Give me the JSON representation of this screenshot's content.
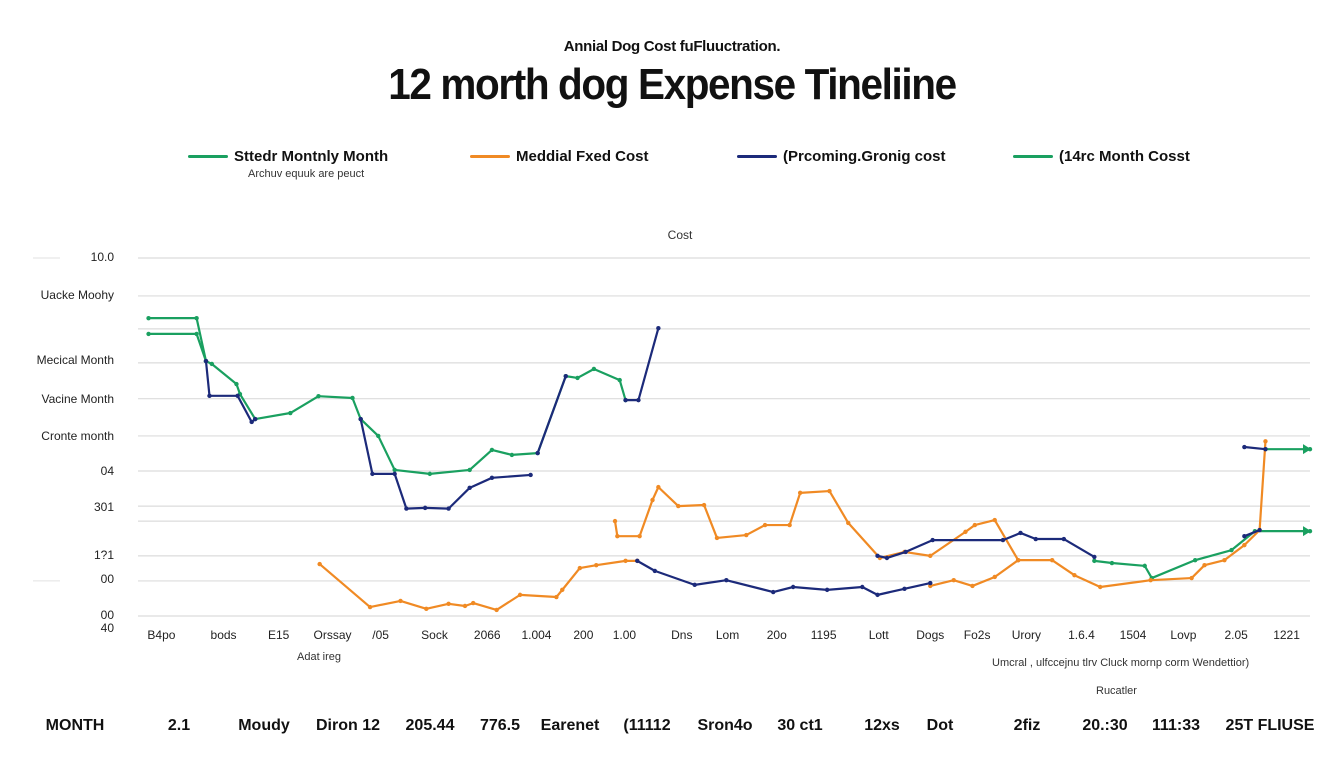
{
  "header": {
    "subtitle": "Annial Dog Cost fuFluuctration.",
    "title": "12 morth dog Expense Tineliine"
  },
  "legend": {
    "items": [
      {
        "label": "Sttedr Montnly Month",
        "color": "#1aa060"
      },
      {
        "label": "Meddial Fxed Cost",
        "color": "#f08a24"
      },
      {
        "label": "(Prcoming.Gronig cost",
        "color": "#1c2a7a"
      },
      {
        "label": "(14rc Month Cosst",
        "color": "#1aa060"
      }
    ],
    "note": "Archuv equuk are peuct"
  },
  "chart_data": {
    "type": "line",
    "title": "12 morth dog Expense Tineliine",
    "subtitle": "Annial Dog Cost fuFluuctration.",
    "ylabel": "Cost",
    "xlabel": "Adat ireg",
    "ylim": [
      0,
      10
    ],
    "xlim": [
      0,
      100
    ],
    "grid": true,
    "legend_position": "top",
    "y_ticks": [
      {
        "label": "10.0",
        "value": 10.0
      },
      {
        "label": "Uacke Moohy",
        "value": 8.94
      },
      {
        "label": "Mecical Month",
        "value": 7.12
      },
      {
        "label": "Vacine Month",
        "value": 6.03
      },
      {
        "label": "Cronte month",
        "value": 5.0
      },
      {
        "label": "04",
        "value": 4.02
      },
      {
        "label": "301",
        "value": 3.02
      },
      {
        "label": "1?1",
        "value": 1.68
      },
      {
        "label": "00",
        "value": 1.0
      },
      {
        "label": "00",
        "value": 0.0
      },
      {
        "label": "40",
        "value": -0.35
      }
    ],
    "gridlines": [
      10.0,
      8.94,
      8.02,
      7.07,
      6.07,
      5.03,
      4.05,
      3.07,
      2.65,
      1.68,
      0.98,
      0.0
    ],
    "x_ticks": [
      {
        "label": "B4po",
        "value": 2.0
      },
      {
        "label": "bods",
        "value": 7.3
      },
      {
        "label": "E15",
        "value": 12.0
      },
      {
        "label": "Orssay",
        "value": 16.6
      },
      {
        "label": "/05",
        "value": 20.7
      },
      {
        "label": "Sock",
        "value": 25.3
      },
      {
        "label": "2066",
        "value": 29.8
      },
      {
        "label": "1.004",
        "value": 34.0
      },
      {
        "label": "200",
        "value": 38.0
      },
      {
        "label": "1.00",
        "value": 41.5
      },
      {
        "label": "Dns",
        "value": 46.4
      },
      {
        "label": "Lom",
        "value": 50.3
      },
      {
        "label": "20o",
        "value": 54.5
      },
      {
        "label": "1195",
        "value": 58.5
      },
      {
        "label": "Lott",
        "value": 63.2
      },
      {
        "label": "Dogs",
        "value": 67.6
      },
      {
        "label": "Fo2s",
        "value": 71.6
      },
      {
        "label": "Urory",
        "value": 75.8
      },
      {
        "label": "1.6.4",
        "value": 80.5
      },
      {
        "label": "1504",
        "value": 84.9
      },
      {
        "label": "Lovp",
        "value": 89.2
      },
      {
        "label": "2.05",
        "value": 93.7
      },
      {
        "label": "1221",
        "value": 98.0
      }
    ],
    "x_notes": {
      "left": "Adat ireg",
      "right": "Umcral , ulfccejnu tlrv Cluck mornp corm Wendettior)",
      "right_sub": "Rucatler"
    },
    "series": [
      {
        "name": "Sttedr Montnly Month",
        "color": "#1aa060",
        "segments": [
          [
            [
              0.9,
              8.32
            ],
            [
              5.0,
              8.32
            ],
            [
              5.8,
              7.12
            ],
            [
              6.3,
              7.04
            ],
            [
              8.4,
              6.48
            ],
            [
              8.7,
              6.2
            ],
            [
              10.0,
              5.5
            ],
            [
              13.0,
              5.67
            ],
            [
              15.4,
              6.14
            ],
            [
              18.3,
              6.09
            ],
            [
              19.0,
              5.5
            ],
            [
              20.5,
              5.03
            ],
            [
              21.9,
              4.08
            ],
            [
              24.9,
              3.97
            ],
            [
              28.3,
              4.08
            ],
            [
              30.2,
              4.64
            ],
            [
              31.9,
              4.5
            ],
            [
              34.1,
              4.55
            ],
            [
              36.5,
              6.7
            ],
            [
              37.5,
              6.65
            ],
            [
              38.9,
              6.9
            ],
            [
              41.1,
              6.59
            ],
            [
              41.6,
              6.03
            ]
          ],
          [
            [
              0.9,
              7.88
            ],
            [
              5.0,
              7.88
            ],
            [
              5.8,
              7.12
            ]
          ],
          [
            [
              81.6,
              1.54
            ],
            [
              83.1,
              1.48
            ],
            [
              85.9,
              1.4
            ],
            [
              86.5,
              1.06
            ],
            [
              90.2,
              1.56
            ],
            [
              93.3,
              1.84
            ],
            [
              95.3,
              2.37
            ],
            [
              100.0,
              2.37
            ]
          ],
          [
            [
              96.2,
              4.66
            ],
            [
              100.0,
              4.66
            ]
          ]
        ]
      },
      {
        "name": "Meddial Fxed Cost",
        "color": "#f08a24",
        "segments": [
          [
            [
              15.5,
              1.45
            ],
            [
              19.8,
              0.25
            ],
            [
              22.4,
              0.42
            ],
            [
              24.6,
              0.2
            ],
            [
              26.5,
              0.34
            ],
            [
              27.9,
              0.28
            ],
            [
              28.6,
              0.36
            ],
            [
              30.6,
              0.17
            ],
            [
              32.6,
              0.59
            ],
            [
              35.7,
              0.53
            ],
            [
              36.2,
              0.73
            ],
            [
              37.7,
              1.34
            ],
            [
              39.1,
              1.42
            ],
            [
              41.6,
              1.54
            ],
            [
              42.6,
              1.54
            ]
          ],
          [
            [
              40.7,
              2.65
            ],
            [
              40.9,
              2.23
            ],
            [
              42.8,
              2.23
            ],
            [
              43.9,
              3.24
            ],
            [
              44.4,
              3.6
            ],
            [
              46.1,
              3.07
            ],
            [
              48.3,
              3.1
            ],
            [
              49.4,
              2.18
            ],
            [
              51.9,
              2.26
            ],
            [
              53.5,
              2.54
            ],
            [
              55.6,
              2.54
            ],
            [
              56.5,
              3.44
            ],
            [
              59.0,
              3.49
            ],
            [
              60.6,
              2.6
            ],
            [
              63.3,
              1.62
            ],
            [
              65.4,
              1.79
            ],
            [
              67.6,
              1.68
            ],
            [
              70.6,
              2.35
            ],
            [
              71.4,
              2.54
            ],
            [
              73.1,
              2.68
            ],
            [
              75.1,
              1.56
            ],
            [
              78.0,
              1.56
            ],
            [
              79.9,
              1.14
            ],
            [
              82.1,
              0.81
            ],
            [
              86.4,
              1.0
            ],
            [
              89.9,
              1.06
            ],
            [
              91.0,
              1.42
            ],
            [
              92.7,
              1.56
            ],
            [
              94.4,
              1.98
            ],
            [
              95.7,
              2.4
            ],
            [
              96.2,
              4.88
            ]
          ],
          [
            [
              67.6,
              0.84
            ],
            [
              69.6,
              1.0
            ],
            [
              71.2,
              0.84
            ],
            [
              73.1,
              1.09
            ],
            [
              75.1,
              1.56
            ]
          ]
        ]
      },
      {
        "name": "(Prcoming.Gronig cost",
        "color": "#1c2a7a",
        "segments": [
          [
            [
              5.8,
              7.12
            ],
            [
              6.1,
              6.15
            ],
            [
              8.5,
              6.15
            ],
            [
              9.7,
              5.42
            ],
            [
              10.0,
              5.5
            ]
          ],
          [
            [
              19.0,
              5.5
            ],
            [
              20.0,
              3.97
            ],
            [
              21.9,
              3.97
            ],
            [
              22.9,
              3.0
            ],
            [
              24.5,
              3.02
            ],
            [
              26.5,
              3.0
            ],
            [
              28.3,
              3.58
            ],
            [
              30.2,
              3.86
            ],
            [
              33.5,
              3.94
            ]
          ],
          [
            [
              34.1,
              4.55
            ],
            [
              36.5,
              6.7
            ]
          ],
          [
            [
              41.6,
              6.03
            ],
            [
              42.7,
              6.03
            ],
            [
              44.4,
              8.04
            ]
          ],
          [
            [
              42.6,
              1.54
            ],
            [
              44.1,
              1.26
            ],
            [
              47.5,
              0.87
            ],
            [
              50.2,
              1.0
            ],
            [
              54.2,
              0.67
            ],
            [
              55.9,
              0.81
            ],
            [
              58.8,
              0.73
            ],
            [
              61.8,
              0.81
            ],
            [
              63.1,
              0.59
            ],
            [
              65.4,
              0.76
            ],
            [
              67.6,
              0.92
            ]
          ],
          [
            [
              63.1,
              1.68
            ],
            [
              63.9,
              1.62
            ],
            [
              65.5,
              1.79
            ],
            [
              67.8,
              2.12
            ],
            [
              73.8,
              2.12
            ],
            [
              75.3,
              2.32
            ],
            [
              76.6,
              2.15
            ],
            [
              79.0,
              2.15
            ],
            [
              81.6,
              1.65
            ]
          ],
          [
            [
              94.4,
              2.23
            ],
            [
              95.7,
              2.4
            ]
          ],
          [
            [
              94.4,
              4.72
            ],
            [
              96.2,
              4.66
            ]
          ]
        ]
      },
      {
        "name": "(14rc Month Cosst",
        "color": "#1aa060",
        "segments": []
      }
    ]
  },
  "bottom_row": {
    "items": [
      "MONTH",
      "2.1",
      "Moudy",
      "Diron 12",
      "205.44",
      "776.5",
      "Earenet",
      "(11112",
      "Sron4o",
      "30 ct1",
      "12xs",
      "Dot",
      "2fiz",
      "20.:30",
      "111:33",
      "25T FLIUSE"
    ]
  }
}
